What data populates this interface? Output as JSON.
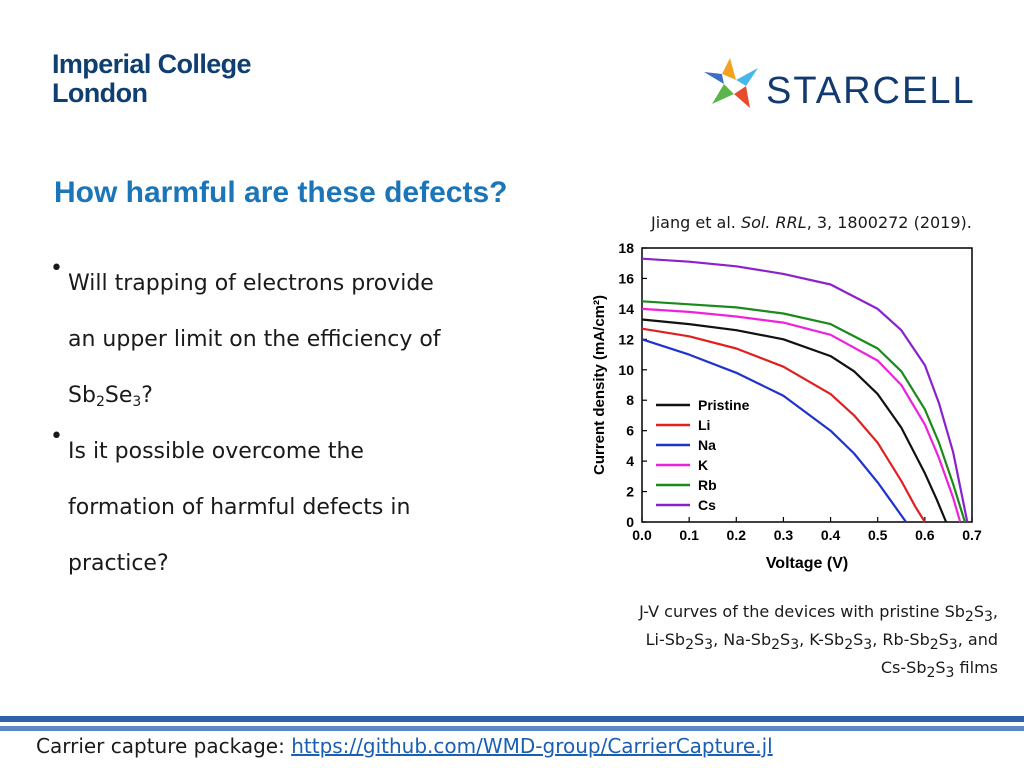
{
  "logos": {
    "imperial": [
      "Imperial College",
      "London"
    ],
    "starcell": "STARCELL"
  },
  "slide": {
    "title": "How harmful are these defects?",
    "citation": {
      "authors": "Jiang et al. ",
      "journal": "Sol. RRL",
      "details": ", 3, 1800272 (2019)."
    },
    "bullets": [
      {
        "line1": "Will trapping of electrons provide",
        "line2": "an upper limit on the efficiency of",
        "formula": {
          "a": "Sb",
          "a_sub": "2",
          "b": "Se",
          "b_sub": "3",
          "tail": "?"
        }
      },
      {
        "lines": [
          "Is it possible overcome the",
          "formation of harmful defects in",
          "practice?"
        ]
      }
    ],
    "caption": {
      "l1a": "J-V curves of the devices with pristine Sb",
      "sub2": "2",
      "S": "S",
      "sub3": "3",
      "comma": ",",
      "li": "Li-Sb",
      "na": ", Na-Sb",
      "k": ", K-Sb",
      "rb": ", Rb-Sb",
      "and": ", and",
      "cs": "Cs-Sb",
      "films": " films"
    }
  },
  "footer": {
    "label": "Carrier capture package: ",
    "link": "https://github.com/WMD-group/CarrierCapture.jl"
  },
  "chart_data": {
    "type": "line",
    "xlabel": "Voltage (V)",
    "ylabel": "Current density (mA/cm²)",
    "xlim": [
      0,
      0.7
    ],
    "ylim": [
      0,
      18
    ],
    "xticks": [
      "0.0",
      "0.1",
      "0.2",
      "0.3",
      "0.4",
      "0.5",
      "0.6",
      "0.7"
    ],
    "yticks": [
      "0",
      "2",
      "4",
      "6",
      "8",
      "10",
      "12",
      "14",
      "16",
      "18"
    ],
    "legend_position": "lower-left",
    "series": [
      {
        "name": "Pristine",
        "color": "#111111",
        "x": [
          0,
          0.1,
          0.2,
          0.3,
          0.4,
          0.45,
          0.5,
          0.55,
          0.6,
          0.625,
          0.645
        ],
        "y": [
          13.3,
          13.0,
          12.6,
          12.0,
          10.9,
          9.9,
          8.4,
          6.2,
          3.2,
          1.5,
          0
        ]
      },
      {
        "name": "Li",
        "color": "#e02020",
        "x": [
          0,
          0.1,
          0.2,
          0.3,
          0.4,
          0.45,
          0.5,
          0.55,
          0.58,
          0.6
        ],
        "y": [
          12.7,
          12.2,
          11.4,
          10.2,
          8.4,
          7.0,
          5.2,
          2.7,
          1.0,
          0
        ]
      },
      {
        "name": "Na",
        "color": "#1f33cc",
        "x": [
          0,
          0.1,
          0.2,
          0.3,
          0.4,
          0.45,
          0.5,
          0.53,
          0.56
        ],
        "y": [
          12.0,
          11.0,
          9.8,
          8.3,
          6.0,
          4.5,
          2.6,
          1.3,
          0
        ]
      },
      {
        "name": "K",
        "color": "#ee22dd",
        "x": [
          0,
          0.1,
          0.2,
          0.3,
          0.4,
          0.5,
          0.55,
          0.6,
          0.63,
          0.66,
          0.675
        ],
        "y": [
          14.0,
          13.8,
          13.5,
          13.1,
          12.3,
          10.6,
          9.0,
          6.4,
          4.2,
          1.6,
          0
        ]
      },
      {
        "name": "Rb",
        "color": "#1a8a1a",
        "x": [
          0,
          0.1,
          0.2,
          0.3,
          0.4,
          0.5,
          0.55,
          0.6,
          0.63,
          0.66,
          0.685
        ],
        "y": [
          14.5,
          14.3,
          14.1,
          13.7,
          13.0,
          11.4,
          9.9,
          7.4,
          5.2,
          2.5,
          0
        ]
      },
      {
        "name": "Cs",
        "color": "#8a22cc",
        "x": [
          0,
          0.1,
          0.2,
          0.3,
          0.4,
          0.5,
          0.55,
          0.6,
          0.63,
          0.66,
          0.69
        ],
        "y": [
          17.3,
          17.1,
          16.8,
          16.3,
          15.6,
          14.0,
          12.6,
          10.3,
          7.8,
          4.6,
          0
        ]
      }
    ]
  }
}
